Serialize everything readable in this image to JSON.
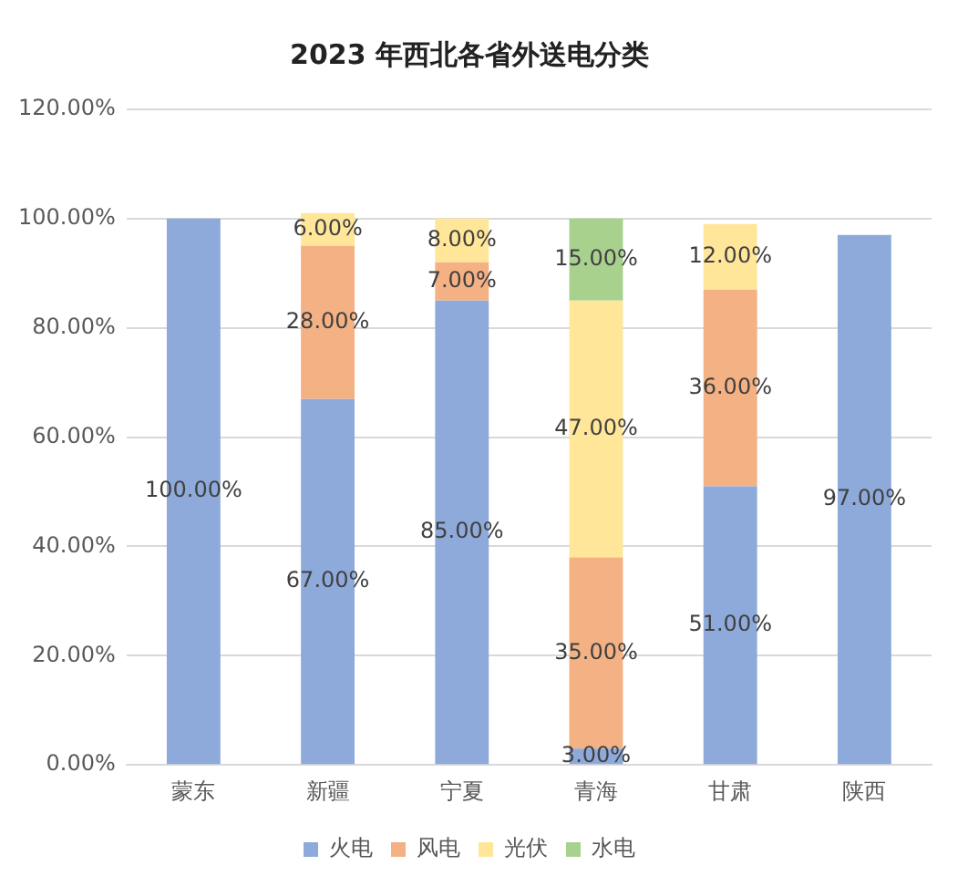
{
  "chart_data": {
    "type": "bar",
    "title": "2023 年西北各省外送电分类",
    "categories": [
      "蒙东",
      "新疆",
      "宁夏",
      "青海",
      "甘肃",
      "陕西"
    ],
    "stacked": true,
    "ylim": [
      0,
      120
    ],
    "yticks": [
      {
        "value": 0,
        "label": "0.00%"
      },
      {
        "value": 20,
        "label": "20.00%"
      },
      {
        "value": 40,
        "label": "40.00%"
      },
      {
        "value": 60,
        "label": "60.00%"
      },
      {
        "value": 80,
        "label": "80.00%"
      },
      {
        "value": 100,
        "label": "100.00%"
      },
      {
        "value": 120,
        "label": "120.00%"
      }
    ],
    "grid": "y",
    "legend": "bottom",
    "series": [
      {
        "name": "火电",
        "color": "#8eaadb",
        "values": [
          100,
          67,
          85,
          3,
          51,
          97
        ],
        "value_labels": [
          "100.00%",
          "67.00%",
          "85.00%",
          "3.00%",
          "51.00%",
          "97.00%"
        ]
      },
      {
        "name": "风电",
        "color": "#f4b183",
        "values": [
          null,
          28,
          7,
          35,
          36,
          null
        ],
        "value_labels": [
          null,
          "28.00%",
          "7.00%",
          "35.00%",
          "36.00%",
          null
        ]
      },
      {
        "name": "光伏",
        "color": "#ffe699",
        "values": [
          null,
          6,
          8,
          47,
          12,
          null
        ],
        "value_labels": [
          null,
          "6.00%",
          "8.00%",
          "47.00%",
          "12.00%",
          null
        ]
      },
      {
        "name": "水电",
        "color": "#a9d18e",
        "values": [
          null,
          null,
          null,
          15,
          null,
          null
        ],
        "value_labels": [
          null,
          null,
          null,
          "15.00%",
          null,
          null
        ]
      }
    ]
  }
}
